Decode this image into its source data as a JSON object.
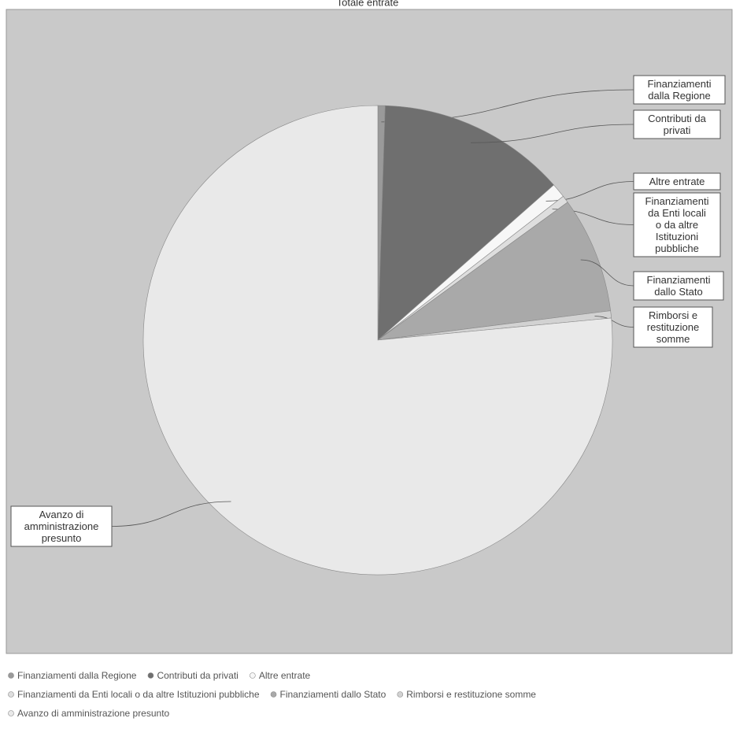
{
  "chart_data": {
    "type": "pie",
    "title": "Totale entrate",
    "categories": [
      "Finanziamenti dalla Regione",
      "Contributi da privati",
      "Altre entrate",
      "Finanziamenti da Enti locali o da altre Istituzioni pubbliche",
      "Finanziamenti dallo Stato",
      "Rimborsi e restituzione somme",
      "Avanzo di amministrazione presunto"
    ],
    "values": [
      0.5,
      13,
      1,
      0.5,
      8,
      0.5,
      76.5
    ],
    "colors": [
      "#9a9a9a",
      "#6f6f6f",
      "#f7f7f7",
      "#dedede",
      "#a9a9a9",
      "#d2d2d2",
      "#e9e9e9"
    ]
  }
}
